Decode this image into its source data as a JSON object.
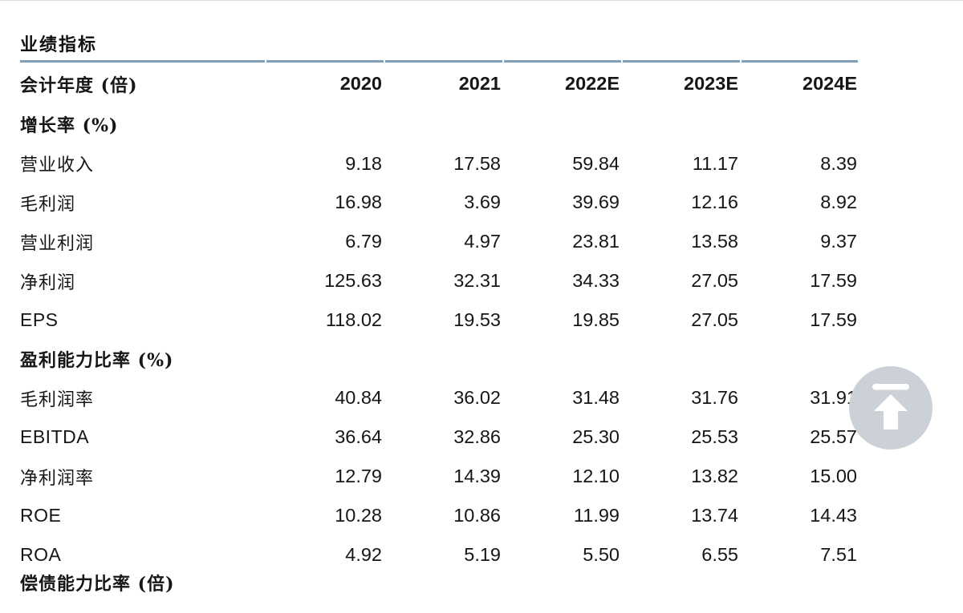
{
  "page": {
    "title": "业绩指标"
  },
  "colors": {
    "header_line": "#87a2bc",
    "back_to_top_circle": "#cbd1d6",
    "text": "#161616"
  },
  "table": {
    "header": {
      "label": "会计年度 (倍)",
      "years": [
        "2020",
        "2021",
        "2022E",
        "2023E",
        "2024E"
      ]
    },
    "rows": [
      {
        "type": "section",
        "label": "增长率 (%)"
      },
      {
        "type": "data",
        "label": "营业收入",
        "v": [
          "9.18",
          "17.58",
          "59.84",
          "11.17",
          "8.39"
        ]
      },
      {
        "type": "data",
        "label": "毛利润",
        "v": [
          "16.98",
          "3.69",
          "39.69",
          "12.16",
          "8.92"
        ]
      },
      {
        "type": "data",
        "label": "营业利润",
        "v": [
          "6.79",
          "4.97",
          "23.81",
          "13.58",
          "9.37"
        ]
      },
      {
        "type": "data",
        "label": "净利润",
        "v": [
          "125.63",
          "32.31",
          "34.33",
          "27.05",
          "17.59"
        ]
      },
      {
        "type": "data",
        "label": "EPS",
        "v": [
          "118.02",
          "19.53",
          "19.85",
          "27.05",
          "17.59"
        ]
      },
      {
        "type": "section",
        "label": "盈利能力比率 (%)"
      },
      {
        "type": "data",
        "label": "毛利润率",
        "v": [
          "40.84",
          "36.02",
          "31.48",
          "31.76",
          "31.91"
        ]
      },
      {
        "type": "data",
        "label": "EBITDA",
        "v": [
          "36.64",
          "32.86",
          "25.30",
          "25.53",
          "25.57"
        ]
      },
      {
        "type": "data",
        "label": "净利润率",
        "v": [
          "12.79",
          "14.39",
          "12.10",
          "13.82",
          "15.00"
        ]
      },
      {
        "type": "data",
        "label": "ROE",
        "v": [
          "10.28",
          "10.86",
          "11.99",
          "13.74",
          "14.43"
        ]
      },
      {
        "type": "data",
        "label": "ROA",
        "v": [
          "4.92",
          "5.19",
          "5.50",
          "6.55",
          "7.51"
        ]
      },
      {
        "type": "section",
        "label": "偿债能力比率 (倍)",
        "clipped": true
      }
    ]
  },
  "back_to_top": {
    "icon": "scroll-to-top-arrow"
  }
}
